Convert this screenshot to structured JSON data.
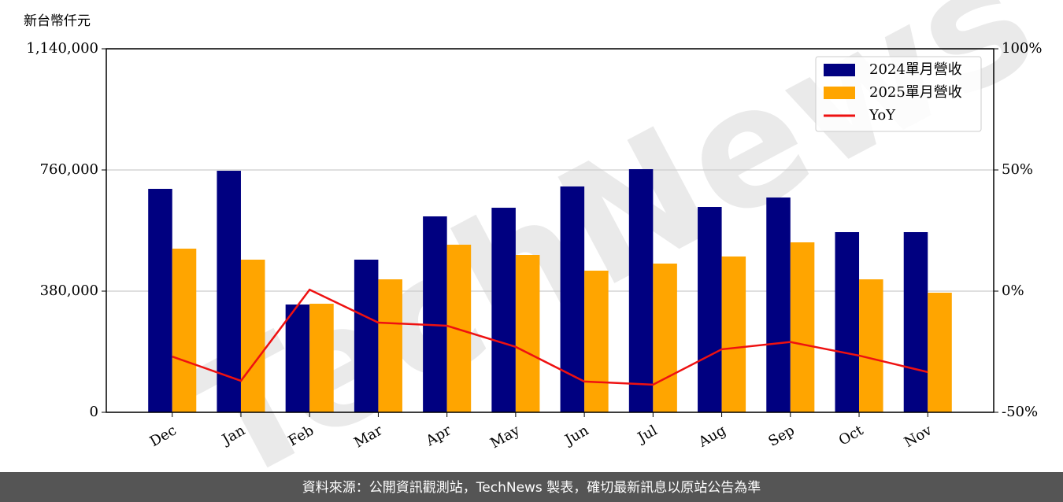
{
  "chart_data": {
    "type": "bar-line",
    "y_label": "新台幣仟元",
    "watermark": "TechNews",
    "footer": "資料來源：公開資訊觀測站，TechNews 製表，確切最新訊息以原站公告為準",
    "categories": [
      "Dec",
      "Jan",
      "Feb",
      "Mar",
      "Apr",
      "May",
      "Jun",
      "Jul",
      "Aug",
      "Sep",
      "Oct",
      "Nov"
    ],
    "series": [
      {
        "name": "2024單月營收",
        "type": "bar",
        "color": "#000080",
        "values": [
          700800,
          757500,
          338000,
          478700,
          614400,
          641500,
          708200,
          762500,
          644000,
          673600,
          565000,
          565000
        ]
      },
      {
        "name": "2025單月營收",
        "type": "bar",
        "color": "#ffa500",
        "values": [
          513200,
          478700,
          340500,
          417000,
          525600,
          493500,
          444200,
          466400,
          488600,
          533000,
          417000,
          375000
        ]
      },
      {
        "name": "YoY",
        "type": "line",
        "axis": "y2",
        "color": "#ee1111",
        "values": [
          -27,
          -37,
          0.6,
          -13,
          -14.3,
          -23,
          -37.3,
          -38.6,
          -24,
          -21,
          -26.6,
          -33.4
        ]
      }
    ],
    "ylim": [
      0,
      1140000
    ],
    "yticks": [
      0,
      {
        "value": 380000,
        "label": "380,000"
      },
      {
        "value": 760000,
        "label": "760,000"
      },
      {
        "value": 1140000,
        "label": "1,140,000"
      }
    ],
    "y2lim": [
      -50,
      100
    ],
    "y2ticks": [
      {
        "value": -50,
        "label": "-50%"
      },
      {
        "value": 0,
        "label": "0%"
      },
      {
        "value": 50,
        "label": "50%"
      },
      {
        "value": 100,
        "label": "100%"
      }
    ],
    "grid": true,
    "legend": "upper right"
  }
}
